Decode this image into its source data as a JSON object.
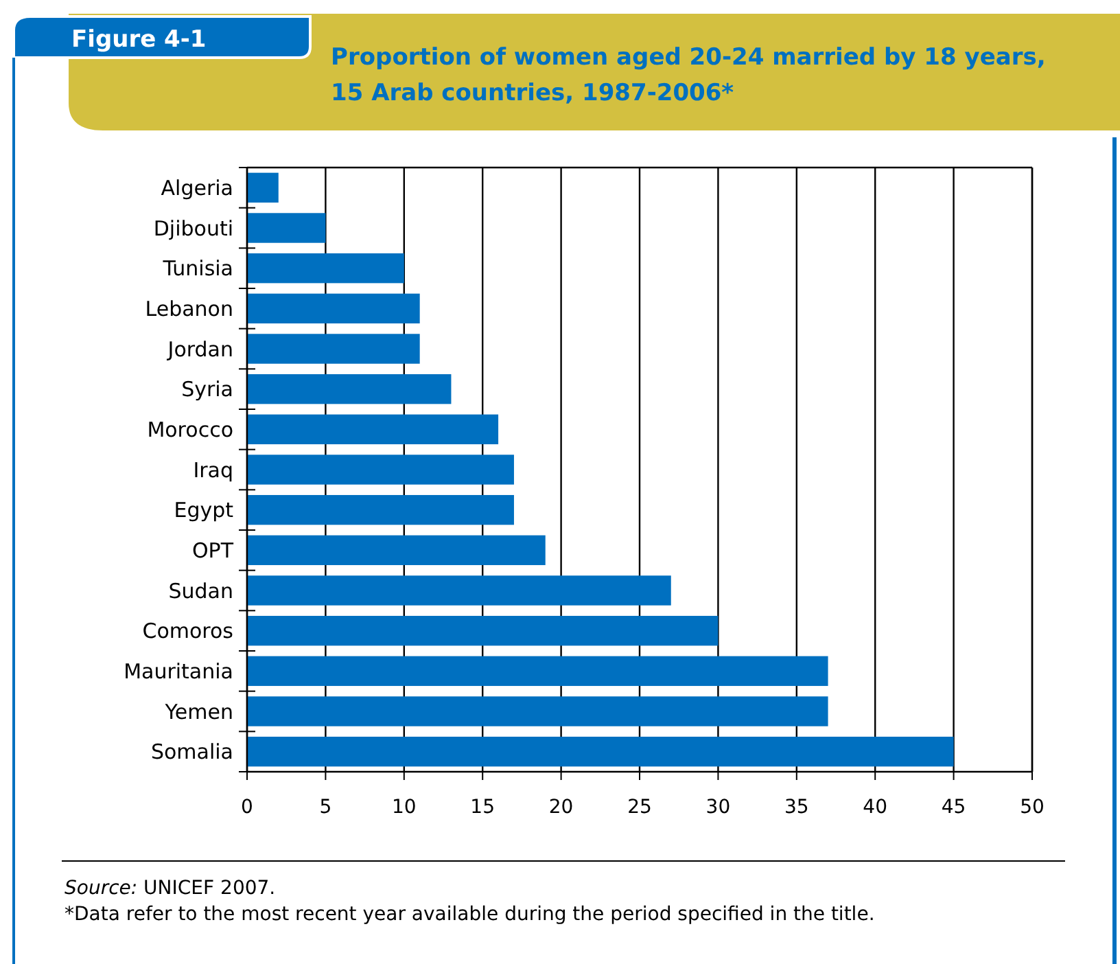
{
  "chart_data": {
    "type": "bar",
    "orientation": "horizontal",
    "subtitle": "Figure 4-1",
    "title": "Proportion of women aged 20-24 married by 18 years,\n15 Arab countries, 1987-2006*",
    "categories": [
      "Algeria",
      "Djibouti",
      "Tunisia",
      "Lebanon",
      "Jordan",
      "Syria",
      "Morocco",
      "Iraq",
      "Egypt",
      "OPT",
      "Sudan",
      "Comoros",
      "Mauritania",
      "Yemen",
      "Somalia"
    ],
    "values": [
      2,
      5,
      10,
      11,
      11,
      13,
      16,
      17,
      17,
      19,
      27,
      30,
      37,
      37,
      45
    ],
    "color": "#0070c0",
    "xlim": [
      0,
      50
    ],
    "xticks": [
      0,
      5,
      10,
      15,
      20,
      25,
      30,
      35,
      40,
      45,
      50
    ],
    "grid": "x",
    "annotations": [
      "Source: UNICEF 2007.",
      "*Data refer to the most recent year available during the period specified in the title."
    ]
  }
}
